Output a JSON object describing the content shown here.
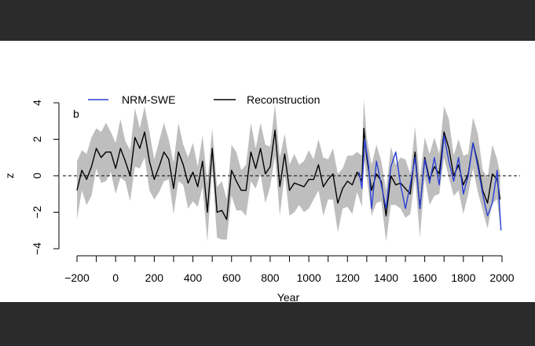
{
  "chart_data": {
    "type": "line",
    "panel_label": "b",
    "xlabel": "Year",
    "ylabel": "z",
    "xlim": [
      -200,
      2000
    ],
    "ylim": [
      -4,
      4
    ],
    "x_ticks": [
      -200,
      0,
      200,
      400,
      600,
      800,
      1000,
      1200,
      1400,
      1600,
      1800,
      2000
    ],
    "x_tick_labels": [
      "−200",
      "0",
      "200",
      "400",
      "600",
      "800",
      "1000",
      "1200",
      "1400",
      "1600",
      "1800",
      "2000"
    ],
    "x_minor_ticks": [
      -100,
      100,
      300,
      500,
      700,
      900,
      1100,
      1300,
      1500,
      1700,
      1900
    ],
    "y_ticks": [
      -4,
      -2,
      0,
      2,
      4
    ],
    "y_tick_labels": [
      "−4",
      "−2",
      "0",
      "2",
      "4"
    ],
    "reference_line": 0,
    "legend": {
      "placement": "top",
      "entries": [
        "NRM-SWE",
        "Reconstruction"
      ]
    },
    "band_halfwidth": 1.2,
    "series": [
      {
        "name": "Reconstruction",
        "color": "#000000",
        "x": [
          -200,
          -175,
          -150,
          -125,
          -100,
          -75,
          -50,
          -25,
          0,
          25,
          50,
          75,
          100,
          125,
          150,
          175,
          200,
          225,
          250,
          275,
          300,
          325,
          350,
          375,
          400,
          425,
          450,
          475,
          500,
          525,
          550,
          575,
          600,
          625,
          650,
          675,
          700,
          725,
          750,
          775,
          800,
          825,
          850,
          875,
          900,
          925,
          950,
          975,
          1000,
          1025,
          1050,
          1075,
          1100,
          1125,
          1150,
          1175,
          1200,
          1225,
          1250,
          1275,
          1285,
          1300,
          1325,
          1350,
          1375,
          1400,
          1425,
          1450,
          1475,
          1500,
          1525,
          1550,
          1575,
          1600,
          1625,
          1650,
          1675,
          1700,
          1725,
          1750,
          1775,
          1800,
          1825,
          1850,
          1875,
          1900,
          1925,
          1950,
          1975,
          1990
        ],
        "y": [
          -0.8,
          0.3,
          -0.2,
          0.5,
          1.5,
          1.0,
          1.3,
          1.3,
          0.4,
          1.5,
          0.8,
          0.0,
          2.1,
          1.5,
          2.4,
          0.8,
          -0.2,
          0.5,
          1.3,
          0.9,
          -0.7,
          1.3,
          0.6,
          -0.4,
          0.2,
          -0.6,
          0.8,
          -2.0,
          1.5,
          -2.0,
          -1.9,
          -2.4,
          0.3,
          -0.3,
          -0.8,
          -0.8,
          1.3,
          0.4,
          1.5,
          0.1,
          0.5,
          2.5,
          -0.6,
          1.2,
          -0.8,
          -0.4,
          -0.5,
          -0.6,
          -0.2,
          -0.2,
          0.6,
          -0.6,
          -0.2,
          0.1,
          -1.5,
          -0.7,
          -0.3,
          -0.5,
          0.2,
          -0.3,
          2.6,
          1.0,
          -0.8,
          0.1,
          -0.3,
          -2.2,
          0.0,
          -0.5,
          -0.4,
          -0.7,
          -1.0,
          1.3,
          -1.8,
          1.0,
          -0.2,
          0.5,
          0.1,
          2.4,
          1.5,
          0.0,
          0.6,
          -0.5,
          0.1,
          1.8,
          0.7,
          -0.8,
          -1.5,
          0.1,
          -0.2,
          -1.3
        ]
      },
      {
        "name": "NRM-SWE",
        "color": "#2b3fd6",
        "x": [
          1260,
          1275,
          1290,
          1310,
          1325,
          1350,
          1375,
          1400,
          1425,
          1450,
          1475,
          1500,
          1525,
          1550,
          1575,
          1600,
          1625,
          1650,
          1675,
          1700,
          1725,
          1750,
          1775,
          1800,
          1825,
          1850,
          1875,
          1900,
          1925,
          1950,
          1975,
          1995
        ],
        "y": [
          0.2,
          -0.7,
          2.0,
          0.5,
          -1.8,
          0.8,
          -0.5,
          -1.8,
          0.5,
          1.3,
          -0.5,
          -1.8,
          -0.5,
          1.0,
          -1.8,
          0.9,
          -0.4,
          1.0,
          -0.5,
          2.2,
          0.8,
          -0.3,
          1.0,
          -1.0,
          0.0,
          1.8,
          0.5,
          -1.0,
          -2.2,
          -1.5,
          0.3,
          -3.0
        ]
      }
    ]
  }
}
